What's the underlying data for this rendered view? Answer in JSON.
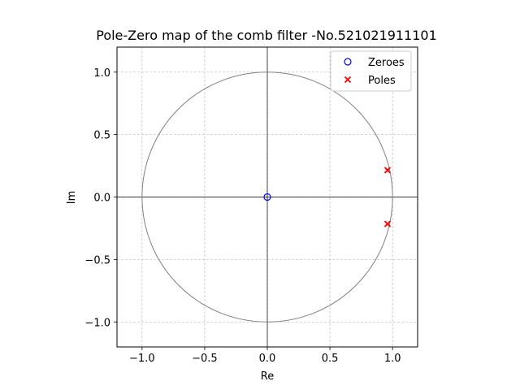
{
  "chart_data": {
    "type": "scatter",
    "title": "Pole-Zero map of the comb filter -No.521021911101",
    "xlabel": "Re",
    "ylabel": "Im",
    "xlim": [
      -1.2,
      1.2
    ],
    "ylim": [
      -1.2,
      1.2
    ],
    "xticks": [
      -1.0,
      -0.5,
      0.0,
      0.5,
      1.0
    ],
    "yticks": [
      -1.0,
      -0.5,
      0.0,
      0.5,
      1.0
    ],
    "xtick_labels": [
      "−1.0",
      "−0.5",
      "0.0",
      "0.5",
      "1.0"
    ],
    "ytick_labels": [
      "−1.0",
      "−0.5",
      "0.0",
      "0.5",
      "1.0"
    ],
    "grid": true,
    "legend_position": "top-right",
    "unit_circle": {
      "radius": 1.0,
      "color": "#808080"
    },
    "series": [
      {
        "name": "Zeroes",
        "marker": "circle",
        "color": "#0000ff",
        "points": [
          {
            "x": 0.0,
            "y": 0.0
          }
        ]
      },
      {
        "name": "Poles",
        "marker": "x",
        "color": "#ff0000",
        "points": [
          {
            "x": 0.96,
            "y": 0.215
          },
          {
            "x": 0.96,
            "y": -0.215
          }
        ]
      }
    ]
  }
}
